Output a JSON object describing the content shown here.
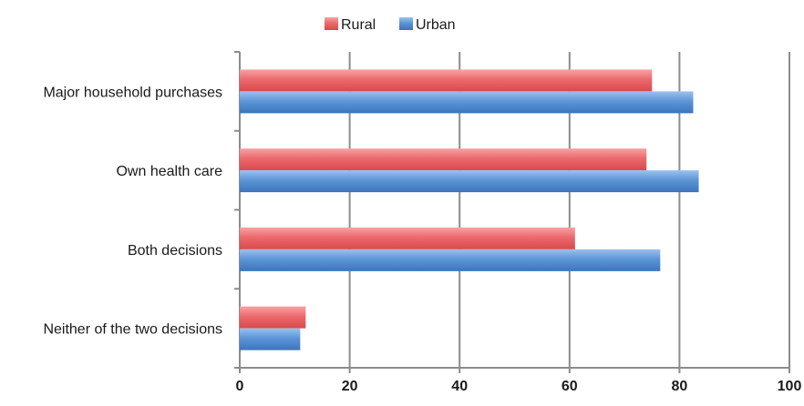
{
  "chart_data": {
    "type": "bar",
    "orientation": "horizontal",
    "categories": [
      "Major household purchases",
      "Own health care",
      "Both decisions",
      "Neither of the two decisions"
    ],
    "series": [
      {
        "name": "Rural",
        "values": [
          75,
          74,
          61,
          12
        ],
        "color": "#e8565a"
      },
      {
        "name": "Urban",
        "values": [
          82.5,
          83.5,
          76.5,
          11
        ],
        "color": "#4a86cc"
      }
    ],
    "title": "",
    "xlabel": "",
    "ylabel": "",
    "xlim": [
      0,
      100
    ],
    "x_ticks": [
      0,
      20,
      40,
      60,
      80,
      100
    ],
    "x_tick_labels": [
      "0",
      "20",
      "40",
      "60",
      "80",
      "100"
    ],
    "grid": true,
    "legend": "top-center"
  }
}
